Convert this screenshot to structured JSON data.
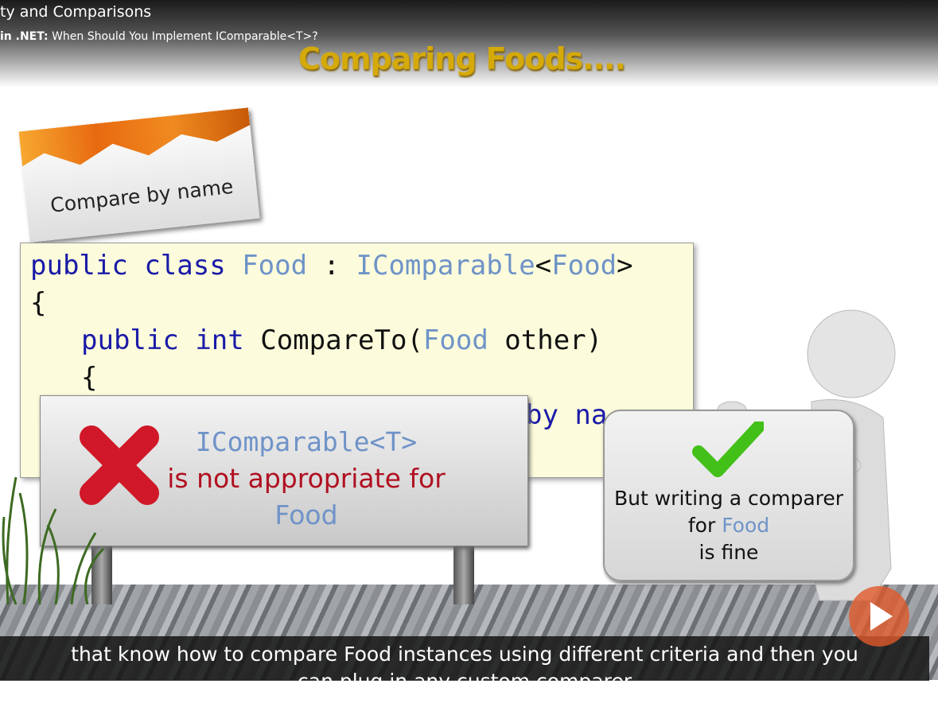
{
  "header": {
    "course": "ty and Comparisons",
    "module_prefix": "in .NET:",
    "module": "When Should You Implement IComparable<T>?"
  },
  "slide": {
    "title": "Comparing Foods....",
    "card": "Compare by name",
    "code": {
      "lines": [
        [
          "public",
          "class",
          "Food",
          ":",
          "IComparable",
          "<",
          "Food",
          ">"
        ],
        [
          "{"
        ],
        [
          "public",
          "int",
          "CompareTo(",
          "Food",
          "other)"
        ],
        [
          "{"
        ],
        [
          "by na"
        ]
      ]
    },
    "bad_sign": {
      "line1": "IComparable<T>",
      "line2": "is not appropriate for",
      "line3": "Food"
    },
    "good_sign": {
      "line1": "But writing a comparer",
      "line2a": "for",
      "line2b": "Food",
      "line3": "is fine"
    }
  },
  "subtitles": [
    "that know how to compare Food instances using different criteria and then you",
    "can plug in any custom comparer"
  ]
}
